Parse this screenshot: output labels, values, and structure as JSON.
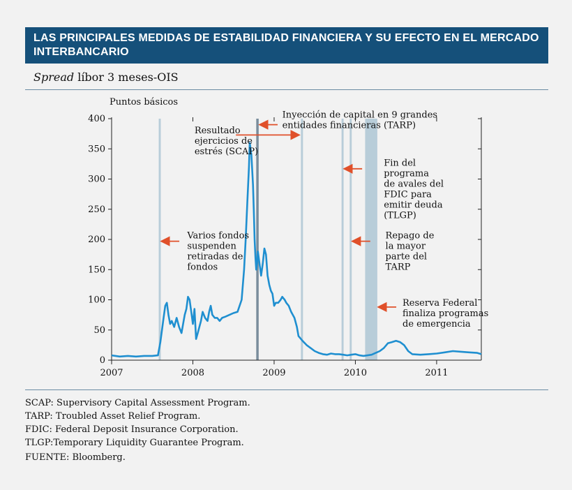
{
  "header": {
    "title": "LAS PRINCIPALES MEDIDAS DE ESTABILIDAD FINANCIERA Y SU EFECTO EN EL MERCADO INTERBANCARIO",
    "subtitle_italic": "Spread",
    "subtitle_rest": " líbor 3 meses-OIS"
  },
  "chart_data": {
    "type": "line",
    "ylabel": "Puntos básicos",
    "ylim": [
      0,
      400
    ],
    "yticks": [
      "0",
      "50",
      "100",
      "150",
      "200",
      "250",
      "300",
      "350",
      "400"
    ],
    "xlim": [
      2007.0,
      2011.55
    ],
    "xticks": [
      "2007",
      "2008",
      "2009",
      "2010",
      "2011"
    ],
    "grid": false,
    "series": [
      {
        "color": "#1f8fd0",
        "x": [
          2007.0,
          2007.1,
          2007.2,
          2007.3,
          2007.4,
          2007.5,
          2007.57,
          2007.6,
          2007.62,
          2007.64,
          2007.66,
          2007.68,
          2007.7,
          2007.72,
          2007.74,
          2007.77,
          2007.8,
          2007.83,
          2007.86,
          2007.88,
          2007.9,
          2007.92,
          2007.94,
          2007.96,
          2007.98,
          2008.0,
          2008.02,
          2008.04,
          2008.06,
          2008.08,
          2008.1,
          2008.12,
          2008.15,
          2008.18,
          2008.2,
          2008.22,
          2008.24,
          2008.27,
          2008.3,
          2008.33,
          2008.36,
          2008.4,
          2008.45,
          2008.5,
          2008.55,
          2008.6,
          2008.63,
          2008.65,
          2008.67,
          2008.69,
          2008.7,
          2008.72,
          2008.74,
          2008.75,
          2008.76,
          2008.77,
          2008.78,
          2008.79,
          2008.8,
          2008.82,
          2008.84,
          2008.86,
          2008.88,
          2008.9,
          2008.92,
          2008.94,
          2008.96,
          2008.98,
          2009.0,
          2009.02,
          2009.05,
          2009.08,
          2009.1,
          2009.13,
          2009.15,
          2009.18,
          2009.21,
          2009.25,
          2009.28,
          2009.3,
          2009.35,
          2009.4,
          2009.45,
          2009.5,
          2009.55,
          2009.6,
          2009.65,
          2009.7,
          2009.75,
          2009.8,
          2009.85,
          2009.9,
          2009.95,
          2010.0,
          2010.05,
          2010.1,
          2010.15,
          2010.2,
          2010.25,
          2010.3,
          2010.35,
          2010.4,
          2010.45,
          2010.5,
          2010.55,
          2010.6,
          2010.65,
          2010.7,
          2010.8,
          2010.9,
          2011.0,
          2011.1,
          2011.2,
          2011.3,
          2011.4,
          2011.5,
          2011.55
        ],
        "y": [
          8,
          6,
          7,
          6,
          7,
          7,
          8,
          30,
          50,
          70,
          90,
          95,
          75,
          60,
          65,
          55,
          70,
          55,
          45,
          60,
          75,
          85,
          105,
          100,
          80,
          60,
          85,
          35,
          45,
          55,
          65,
          80,
          70,
          65,
          80,
          90,
          75,
          70,
          70,
          65,
          70,
          72,
          75,
          78,
          80,
          100,
          150,
          200,
          260,
          320,
          360,
          340,
          290,
          250,
          200,
          170,
          150,
          160,
          180,
          160,
          140,
          160,
          185,
          175,
          140,
          125,
          115,
          110,
          90,
          95,
          95,
          100,
          105,
          100,
          95,
          90,
          80,
          70,
          55,
          40,
          32,
          25,
          20,
          15,
          12,
          10,
          9,
          11,
          10,
          10,
          9,
          8,
          9,
          10,
          8,
          7,
          8,
          9,
          12,
          15,
          20,
          28,
          30,
          32,
          30,
          25,
          15,
          10,
          9,
          10,
          11,
          13,
          15,
          14,
          13,
          12,
          10
        ]
      }
    ],
    "vertical_bands": [
      {
        "x0": 2007.58,
        "x1": 2007.605,
        "color": "#b8cdd9"
      },
      {
        "x0": 2008.78,
        "x1": 2008.81,
        "color": "#7a8d9c"
      },
      {
        "x0": 2009.33,
        "x1": 2009.355,
        "color": "#b8cdd9"
      },
      {
        "x0": 2009.83,
        "x1": 2009.855,
        "color": "#b8cdd9"
      },
      {
        "x0": 2009.93,
        "x1": 2009.955,
        "color": "#b8cdd9"
      },
      {
        "x0": 2010.12,
        "x1": 2010.27,
        "color": "#b8cdd9"
      }
    ],
    "annotations": [
      {
        "lines": [
          "Varios fondos",
          "suspenden",
          "retiradas de",
          "fondos"
        ],
        "arrow_x": 2007.61,
        "arrow_y": 197,
        "text_x": 2007.93,
        "text_y": 202
      },
      {
        "lines": [
          "Resultado",
          "ejercicios de",
          "estrés (SCAP)"
        ],
        "arrow_x": 2009.31,
        "arrow_y": 373,
        "text_x": 2008.02,
        "text_y": 376,
        "arrow_from_x": 2008.53
      },
      {
        "lines": [
          "Inyección de capital en 9 grandes",
          "entidades financieras (TARP)"
        ],
        "arrow_x": 2008.82,
        "arrow_y": 390,
        "text_x": 2009.1,
        "text_y": 402
      },
      {
        "lines": [
          "Fin del",
          "programa",
          "de avales del",
          "FDIC para",
          "emitir deuda",
          "(TLGP)"
        ],
        "arrow_x": 2009.86,
        "arrow_y": 317,
        "text_x": 2010.35,
        "text_y": 322
      },
      {
        "lines": [
          "Repago de",
          "la mayor",
          "parte del",
          "TARP"
        ],
        "arrow_x": 2009.96,
        "arrow_y": 197,
        "text_x": 2010.37,
        "text_y": 202
      },
      {
        "lines": [
          "Reserva Federal",
          "finaliza programas",
          "de emergencia"
        ],
        "arrow_x": 2010.28,
        "arrow_y": 88,
        "text_x": 2010.58,
        "text_y": 90
      }
    ]
  },
  "footnotes": [
    "SCAP: Supervisory Capital Assessment Program.",
    "TARP:  Troubled Asset Relief Program.",
    "FDIC: Federal Deposit Insurance Corporation.",
    "TLGP:Temporary Liquidity Guarantee Program."
  ],
  "source": "FUENTE: Bloomberg.",
  "colors": {
    "title_bg": "#15507a",
    "arrow": "#e0502a",
    "line": "#1f8fd0"
  }
}
